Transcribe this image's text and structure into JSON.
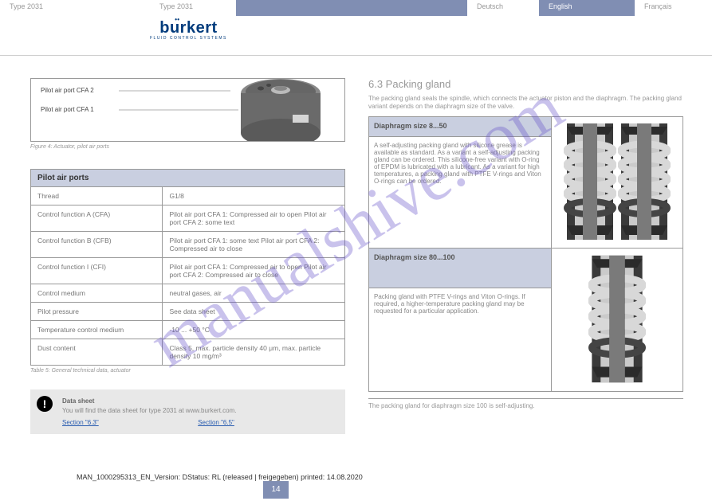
{
  "tabs": {
    "t0": "Type 2031",
    "t1": "Type 2031",
    "t2": "Deutsch",
    "t3": "English",
    "t4": "Français"
  },
  "logo": {
    "brand": "burkert",
    "tagline": "FLUID CONTROL SYSTEMS"
  },
  "figure": {
    "label1": "Pilot air port CFA 2",
    "label2": "Pilot air port CFA 1",
    "caption": "Figure 4:   Actuator, pilot air ports"
  },
  "specs_header": "Pilot air ports",
  "specs": [
    {
      "k": "Thread",
      "v": "G1/8"
    },
    {
      "k": "Control function A (CFA)",
      "v": "Pilot air port CFA 1: Compressed air to open\nPilot air port CFA 2: some text"
    },
    {
      "k": "Control function B (CFB)",
      "v": "Pilot air port CFA 1: some text\nPilot air port CFA 2: Compressed air to close"
    },
    {
      "k": "Control function I (CFI)",
      "v": "Pilot air port CFA 1: Compressed air to open\nPilot air port CFA 2: Compressed air to close"
    },
    {
      "k": "Control medium",
      "v": "neutral gases, air"
    },
    {
      "k": "Pilot pressure",
      "v": "See data sheet"
    },
    {
      "k": "Temperature control medium",
      "v": "-10 ... +50 °C"
    },
    {
      "k": "Dust content",
      "v": "Class 5, max. particle density 40 μm, max. particle density 10 mg/m³"
    }
  ],
  "specs_caption": "Table 5:   General technical data, actuator",
  "note": {
    "line1": "Data sheet",
    "line2": "You will find the data sheet for type 2031 at www.burkert.com.",
    "linkA": "Section \"6.3\"",
    "linkB": "Section \"6.5\""
  },
  "right": {
    "h1": "6.3 Packing gland",
    "p1": "The packing gland seals the spindle, which connects the actuator piston and the diaphragm. The packing gland variant depends on the diaphragm size of the valve.",
    "row1h": "Diaphragm size 8...50",
    "row1t": "A self-adjusting packing gland with silicone grease is available as standard.\n\nAs a variant a self-adjusting packing gland can be ordered. This silicone-free variant with O-ring of EPDM is lubricated with a lubricant.\n\nAs a variant for high temperatures, a packing gland with PTFE V-rings and Viton O-rings can be ordered.",
    "row2h": "Diaphragm size 80...100",
    "row2t": "Packing gland with PTFE V-rings and Viton O-rings. If required, a higher-temperature packing gland may be requested for a particular application.",
    "foot": "The packing gland for diaphragm size 100 is self-adjusting."
  },
  "packing_colors": {
    "outer": "#3a3a3a",
    "inner": "#cacaca",
    "bore": "#7a7a7a",
    "vring": "#2b2b2b",
    "oring": "#555"
  },
  "watermark": "manualshive.com",
  "footer": "MAN_1000295313_EN_Version: DStatus: RL (released | freigegeben)  printed: 14.08.2020",
  "page": "14"
}
